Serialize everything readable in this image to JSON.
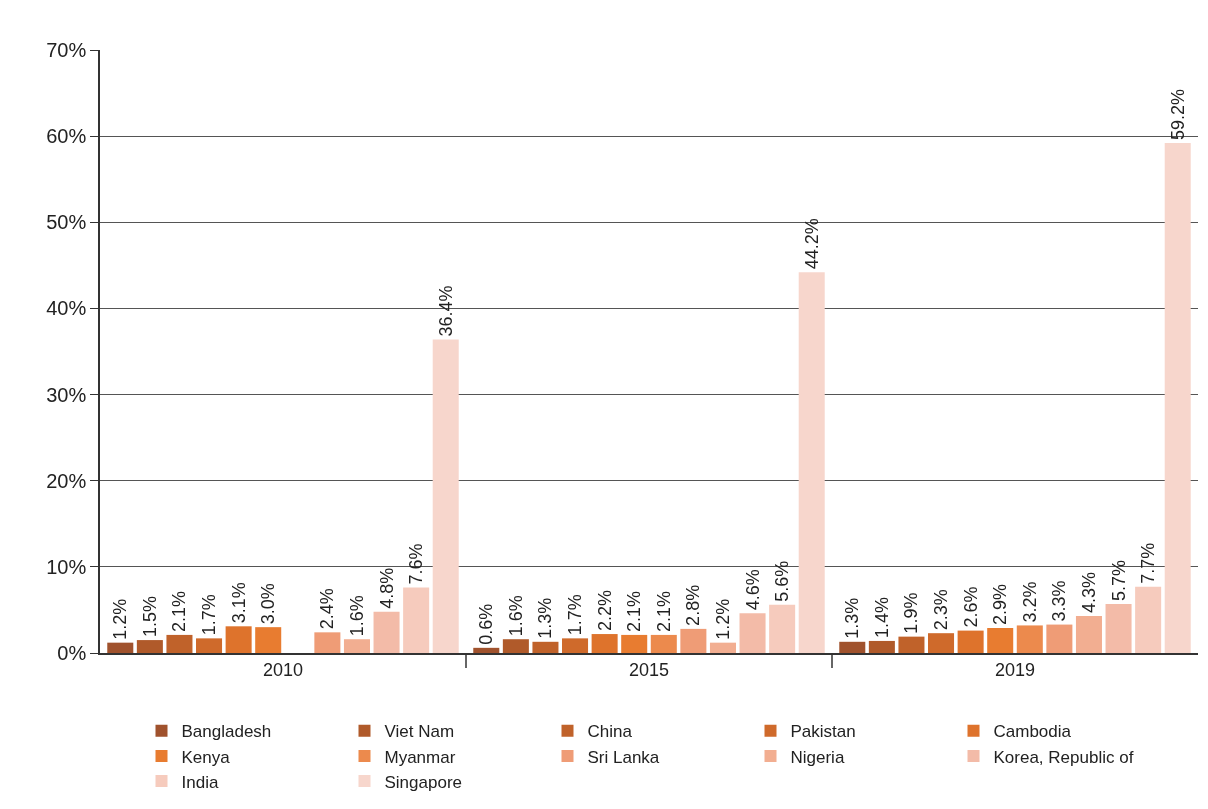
{
  "chart_data": {
    "type": "bar",
    "categories": [
      "2010",
      "2015",
      "2019"
    ],
    "ylim": [
      0,
      70
    ],
    "yticks": [
      {
        "value": 0,
        "label": "0%"
      },
      {
        "value": 10,
        "label": "10%"
      },
      {
        "value": 20,
        "label": "20%"
      },
      {
        "value": 30,
        "label": "30%"
      },
      {
        "value": 40,
        "label": "40%"
      },
      {
        "value": 50,
        "label": "50%"
      },
      {
        "value": 60,
        "label": "60%"
      },
      {
        "value": 70,
        "label": "70%"
      }
    ],
    "grid": "y",
    "legend": "bottom",
    "series": [
      {
        "name": "Bangladesh",
        "color": "#a0522d",
        "values": [
          1.2,
          0.6,
          1.3
        ],
        "value_labels": [
          "1.2%",
          "0.6%",
          "1.3%"
        ]
      },
      {
        "name": "Viet Nam",
        "color": "#b05a2a",
        "values": [
          1.5,
          1.6,
          1.4
        ],
        "value_labels": [
          "1.5%",
          "1.6%",
          "1.4%"
        ]
      },
      {
        "name": "China",
        "color": "#c0622a",
        "values": [
          2.1,
          1.3,
          1.9
        ],
        "value_labels": [
          "2.1%",
          "1.3%",
          "1.9%"
        ]
      },
      {
        "name": "Pakistan",
        "color": "#cf6a2b",
        "values": [
          1.7,
          1.7,
          2.3
        ],
        "value_labels": [
          "1.7%",
          "1.7%",
          "2.3%"
        ]
      },
      {
        "name": "Cambodia",
        "color": "#de732c",
        "values": [
          3.1,
          2.2,
          2.6
        ],
        "value_labels": [
          "3.1%",
          "2.2%",
          "2.6%"
        ]
      },
      {
        "name": "Kenya",
        "color": "#e87c30",
        "values": [
          3.0,
          2.1,
          2.9
        ],
        "value_labels": [
          "3.0%",
          "2.1%",
          "2.9%"
        ]
      },
      {
        "name": "Myanmar",
        "color": "#ec8a4d",
        "values": [
          null,
          2.1,
          3.2
        ],
        "value_labels": [
          null,
          "2.1%",
          "3.2%"
        ]
      },
      {
        "name": "Sri Lanka",
        "color": "#ef9c76",
        "values": [
          2.4,
          2.8,
          3.3
        ],
        "value_labels": [
          "2.4%",
          "2.8%",
          "3.3%"
        ]
      },
      {
        "name": "Nigeria",
        "color": "#f2ae91",
        "values": [
          1.6,
          1.2,
          4.3
        ],
        "value_labels": [
          "1.6%",
          "1.2%",
          "4.3%"
        ]
      },
      {
        "name": "Korea, Republic of",
        "color": "#f3bba8",
        "values": [
          4.8,
          4.6,
          5.7
        ],
        "value_labels": [
          "4.8%",
          "4.6%",
          "5.7%"
        ]
      },
      {
        "name": "India",
        "color": "#f6cbbd",
        "values": [
          7.6,
          5.6,
          7.7
        ],
        "value_labels": [
          "7.6%",
          "5.6%",
          "7.7%"
        ]
      },
      {
        "name": "Singapore",
        "color": "#f7d6cc",
        "values": [
          36.4,
          44.2,
          59.2
        ],
        "value_labels": [
          "36.4%",
          "44.2%",
          "59.2%"
        ]
      }
    ]
  }
}
